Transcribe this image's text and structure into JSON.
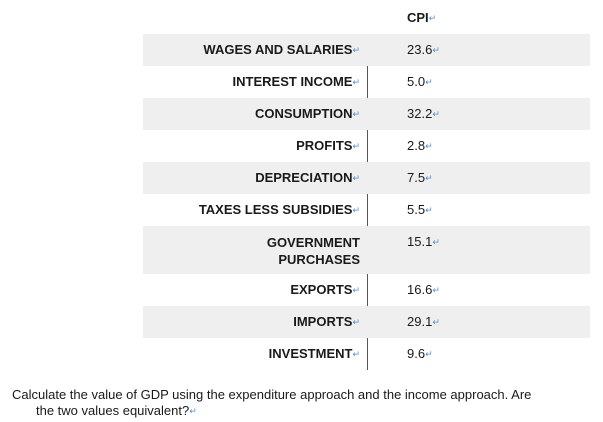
{
  "table": {
    "header": "CPI",
    "rows": [
      {
        "label": "WAGES AND SALARIES",
        "value": "23.6"
      },
      {
        "label": "INTEREST INCOME",
        "value": "5.0"
      },
      {
        "label": "CONSUMPTION",
        "value": "32.2"
      },
      {
        "label": "PROFITS",
        "value": "2.8"
      },
      {
        "label": "DEPRECIATION",
        "value": "7.5"
      },
      {
        "label": "TAXES LESS SUBSIDIES",
        "value": "5.5"
      },
      {
        "label": "GOVERNMENT PURCHASES",
        "value": "15.1"
      },
      {
        "label": "EXPORTS",
        "value": "16.6"
      },
      {
        "label": "IMPORTS",
        "value": "29.1"
      },
      {
        "label": "INVESTMENT",
        "value": "9.6"
      }
    ]
  },
  "question": {
    "line1": "Calculate the value of GDP using the expenditure approach and the income approach. Are",
    "line2": "the two values equivalent?"
  },
  "marker": "↵"
}
